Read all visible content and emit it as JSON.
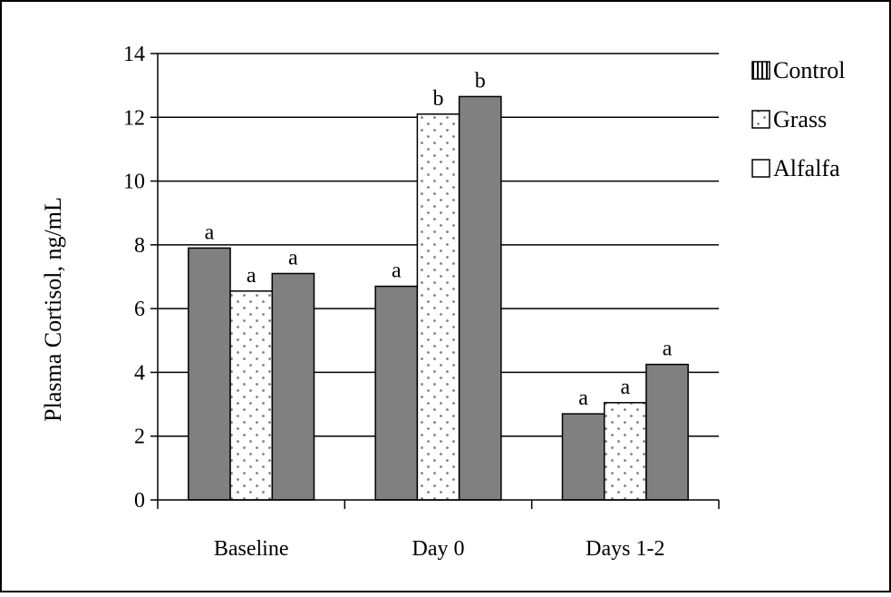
{
  "chart_data": {
    "type": "bar",
    "title": "",
    "xlabel": "",
    "ylabel": "Plasma Cortisol, ng/mL",
    "ylim": [
      0,
      14
    ],
    "yticks": [
      0,
      2,
      4,
      6,
      8,
      10,
      12,
      14
    ],
    "categories": [
      "Baseline",
      "Day 0",
      "Days 1-2"
    ],
    "series": [
      {
        "name": "Control",
        "values": [
          7.9,
          6.7,
          2.7
        ],
        "labels": [
          "a",
          "a",
          "a"
        ],
        "color": "#808080",
        "pattern": "solid"
      },
      {
        "name": "Grass",
        "values": [
          6.55,
          12.1,
          3.05
        ],
        "labels": [
          "a",
          "b",
          "a"
        ],
        "color": "#ffffff",
        "pattern": "dots"
      },
      {
        "name": "Alfalfa",
        "values": [
          7.1,
          12.65,
          4.25
        ],
        "labels": [
          "a",
          "b",
          "a"
        ],
        "color": "#808080",
        "pattern": "solid"
      }
    ],
    "legend": {
      "position": "right",
      "entries": [
        "Control",
        "Grass",
        "Alfalfa"
      ]
    },
    "grid": "horizontal"
  }
}
